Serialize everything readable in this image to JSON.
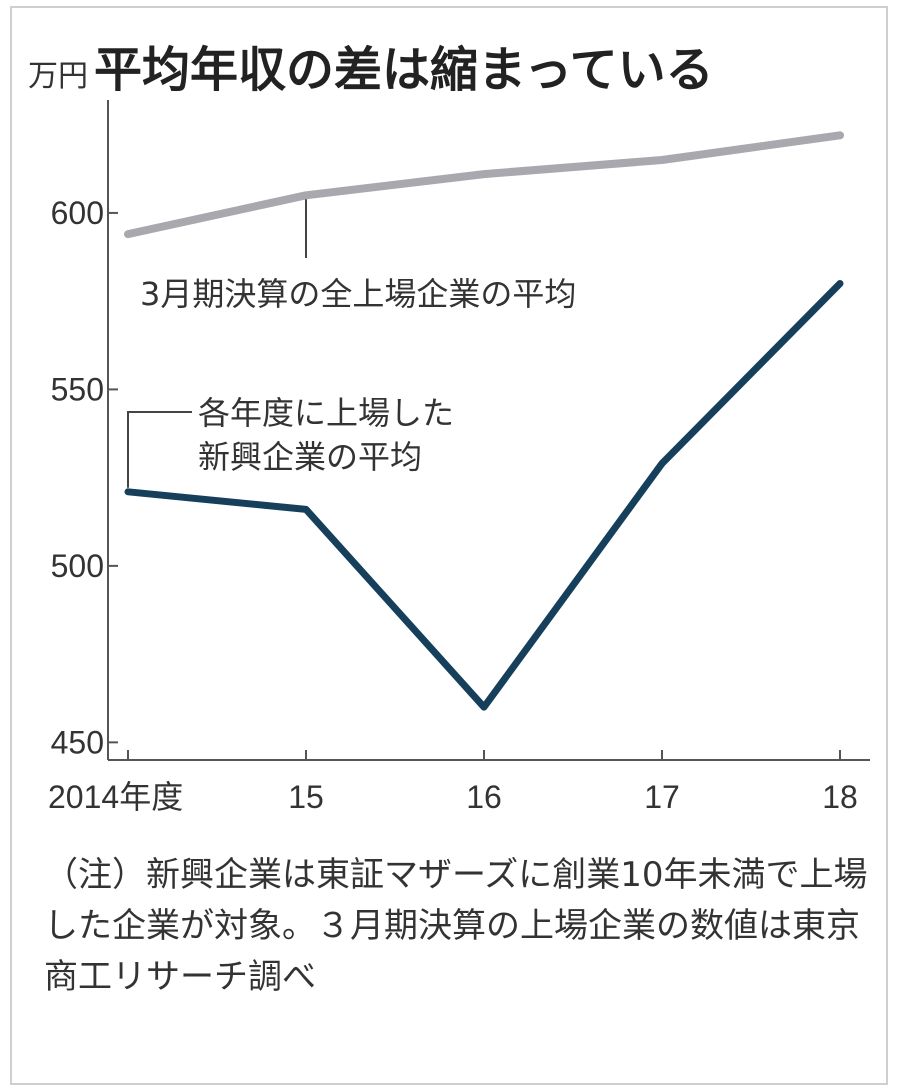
{
  "chart_data": {
    "type": "line",
    "title": "平均年収の差は縮まっている",
    "unit": "万円",
    "x_labels": [
      "2014年度",
      "15",
      "16",
      "17",
      "18"
    ],
    "y_ticks": [
      450,
      500,
      550,
      600
    ],
    "ylim": [
      445,
      632
    ],
    "grid": false,
    "series": [
      {
        "name": "3月期決算の全上場企業の平均",
        "color": "#a9a8ae",
        "values": [
          594,
          605,
          611,
          615,
          622
        ]
      },
      {
        "name": "各年度に上場した新興企業の平均",
        "label_lines": [
          "各年度に上場した",
          "新興企業の平均"
        ],
        "color": "#163f5c",
        "values": [
          521,
          516,
          460,
          529,
          580
        ]
      }
    ]
  },
  "note": "（注）新興企業は東証マザーズに創業10年未満で上場した企業が対象。３月期決算の上場企業の数値は東京商工リサーチ調べ"
}
